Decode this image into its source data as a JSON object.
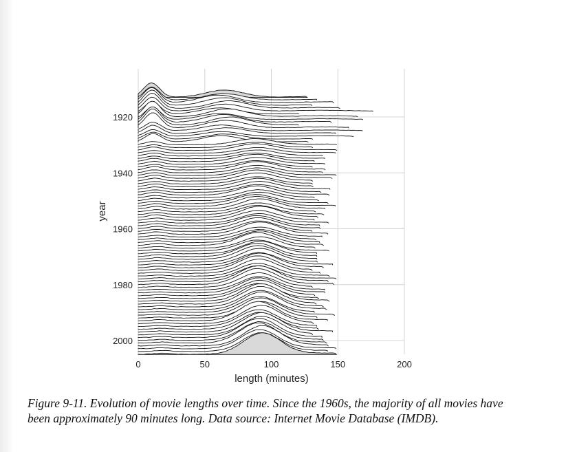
{
  "chart_data": {
    "type": "ridgeline",
    "xlabel": "length (minutes)",
    "ylabel": "year",
    "xlim": [
      0,
      200
    ],
    "ylim": [
      1913,
      2005
    ],
    "x_ticks": [
      "0",
      "50",
      "100",
      "150",
      "200"
    ],
    "y_ticks": [
      "1920",
      "1940",
      "1960",
      "1980",
      "2000"
    ],
    "grid": true,
    "series_rows": "one density curve per year, 1913–2005 (approximate shapes)",
    "year_start": 1913,
    "year_end": 2005,
    "fill_color": "#d9d9d9",
    "line_color": "#111111",
    "grid_color": "#d4d4d4"
  },
  "caption": "Figure 9-11. Evolution of movie lengths over time. Since the 1960s, the majority of all movies have been approximately 90 minutes long. Data source: Internet Movie Database (IMDB)."
}
